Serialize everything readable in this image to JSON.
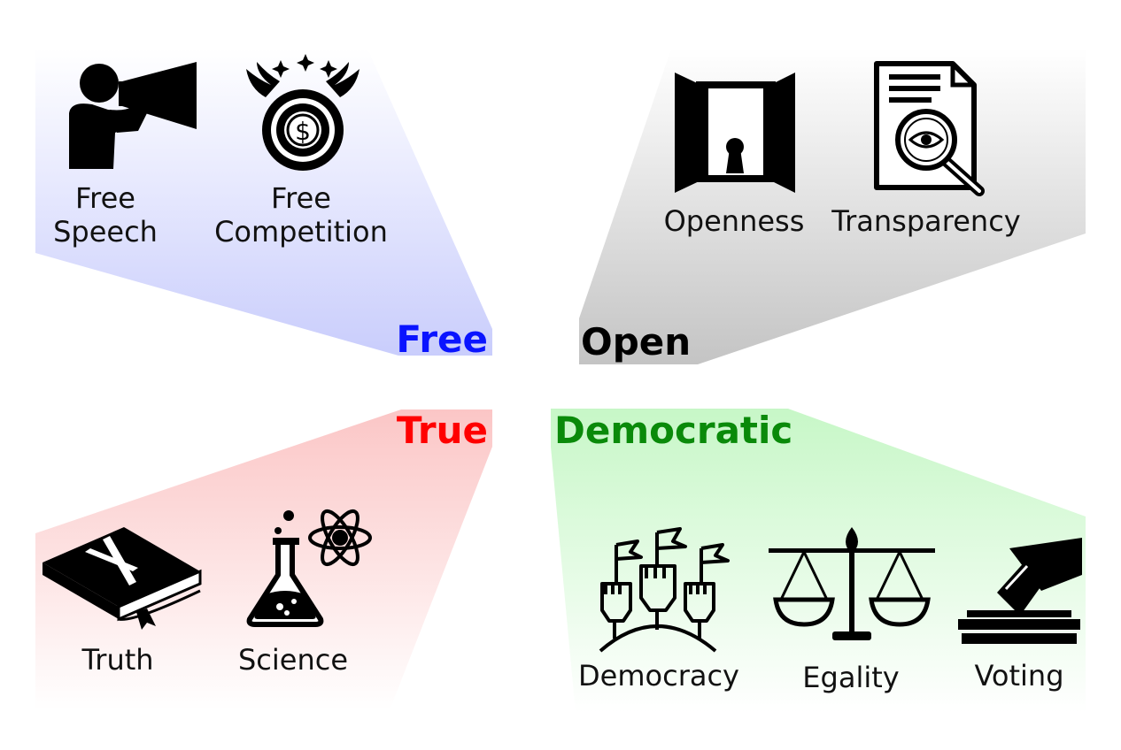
{
  "quadrants": {
    "free": {
      "title": "Free",
      "color": "#0a14ff",
      "gradient_color": "#c9cdfc",
      "items": [
        {
          "line1": "Free",
          "line2": "Speech",
          "icon": "megaphone-person-icon"
        },
        {
          "line1": "Free",
          "line2": "Competition",
          "icon": "winged-coin-icon"
        }
      ]
    },
    "open": {
      "title": "Open",
      "color": "#000000",
      "gradient_color": "#c4c4c4",
      "items": [
        {
          "line1": "Openness",
          "icon": "open-door-keyhole-icon"
        },
        {
          "line1": "Transparency",
          "icon": "document-magnifier-icon"
        }
      ]
    },
    "true": {
      "title": "True",
      "color": "#ff0000",
      "gradient_color": "#fbc6c6",
      "items": [
        {
          "line1": "Truth",
          "icon": "bible-cross-icon"
        },
        {
          "line1": "Science",
          "icon": "flask-atom-icon"
        }
      ]
    },
    "democratic": {
      "title": "Democratic",
      "color": "#0a8a0a",
      "gradient_color": "#c7f7c7",
      "items": [
        {
          "line1": "Democracy",
          "icon": "raised-fists-flags-icon"
        },
        {
          "line1": "Egality",
          "icon": "balance-scale-icon"
        },
        {
          "line1": "Voting",
          "icon": "ballot-box-icon"
        }
      ]
    }
  }
}
